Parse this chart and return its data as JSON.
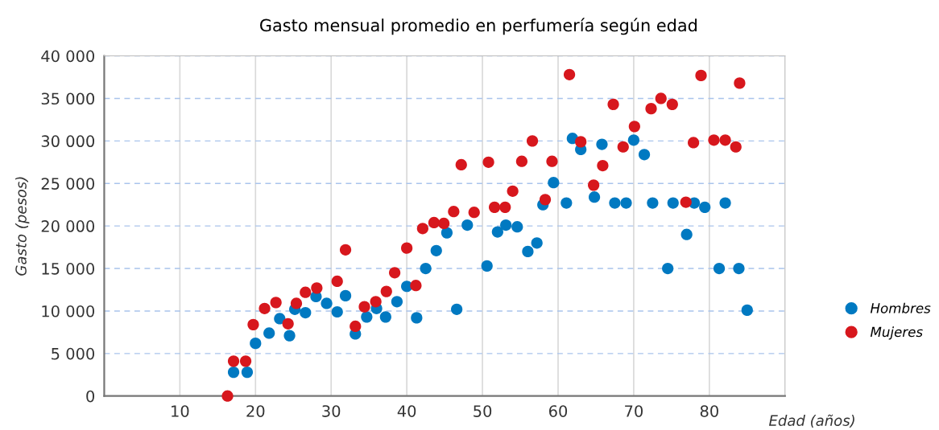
{
  "chart_data": {
    "type": "scatter",
    "title": "Gasto mensual promedio en perfumería según edad",
    "xlabel": "Edad (años)",
    "ylabel": "Gasto (pesos)",
    "xlim": [
      0,
      90
    ],
    "xticks": [
      10,
      20,
      30,
      40,
      50,
      60,
      70,
      80
    ],
    "ylim": [
      0,
      40000
    ],
    "yticks": [
      {
        "value": 0,
        "label": "0"
      },
      {
        "value": 5000,
        "label": "5 000"
      },
      {
        "value": 10000,
        "label": "10 000"
      },
      {
        "value": 15000,
        "label": "15 000"
      },
      {
        "value": 20000,
        "label": "20 000"
      },
      {
        "value": 25000,
        "label": "25 000"
      },
      {
        "value": 30000,
        "label": "30 000"
      },
      {
        "value": 35000,
        "label": "35 000"
      },
      {
        "value": 40000,
        "label": "40 000"
      }
    ],
    "grid": true,
    "legend": "right",
    "marker": "circle",
    "series": [
      {
        "name": "Hombres",
        "color": "#0079c1",
        "x": [
          17.1,
          18.9,
          20.0,
          21.8,
          23.2,
          24.5,
          25.2,
          26.6,
          28.0,
          29.4,
          30.8,
          31.9,
          33.2,
          34.7,
          36.0,
          37.2,
          38.7,
          40.0,
          41.3,
          42.5,
          43.9,
          45.3,
          46.6,
          48.0,
          50.6,
          52.0,
          53.1,
          54.6,
          56.0,
          57.2,
          58.0,
          59.4,
          61.1,
          61.9,
          63.0,
          64.8,
          65.8,
          67.5,
          69.0,
          70.0,
          71.4,
          72.5,
          74.5,
          75.2,
          77.0,
          78.0,
          79.4,
          81.3,
          82.1,
          83.9,
          85.0
        ],
        "values": [
          2800,
          2800,
          6200,
          7400,
          9100,
          7100,
          10200,
          9800,
          11700,
          10900,
          9900,
          11800,
          7300,
          9300,
          10300,
          9300,
          11100,
          12900,
          9200,
          15000,
          17100,
          19200,
          10200,
          20100,
          15300,
          19300,
          20100,
          19900,
          17000,
          18000,
          22500,
          25100,
          22700,
          30300,
          29000,
          23400,
          29600,
          22700,
          22700,
          30100,
          28400,
          22700,
          15000,
          22700,
          19000,
          22700,
          22200,
          15000,
          22700,
          15000,
          10100
        ]
      },
      {
        "name": "Mujeres",
        "color": "#d7171d",
        "x": [
          16.3,
          17.1,
          18.7,
          19.7,
          21.2,
          22.7,
          24.3,
          25.4,
          26.6,
          28.1,
          30.8,
          31.9,
          33.2,
          34.4,
          35.9,
          37.3,
          38.4,
          40.0,
          41.2,
          42.1,
          43.6,
          44.9,
          46.2,
          47.2,
          48.9,
          50.8,
          51.6,
          53.0,
          54.0,
          55.2,
          56.6,
          58.3,
          59.2,
          61.5,
          63.0,
          64.7,
          65.9,
          67.3,
          68.6,
          70.1,
          72.3,
          73.6,
          75.1,
          76.9,
          77.9,
          78.9,
          80.6,
          82.1,
          83.5,
          84.0
        ],
        "values": [
          0,
          4100,
          4100,
          8400,
          10300,
          11000,
          8500,
          10900,
          12200,
          12700,
          13500,
          17200,
          8200,
          10500,
          11100,
          12300,
          14500,
          17400,
          13000,
          19700,
          20400,
          20300,
          21700,
          27200,
          21600,
          27500,
          22200,
          22200,
          24100,
          27600,
          30000,
          23100,
          27600,
          37800,
          29900,
          24800,
          27100,
          34300,
          29300,
          31700,
          33800,
          35000,
          34300,
          22800,
          29800,
          37700,
          30100,
          30100,
          29300,
          36800
        ]
      }
    ]
  }
}
